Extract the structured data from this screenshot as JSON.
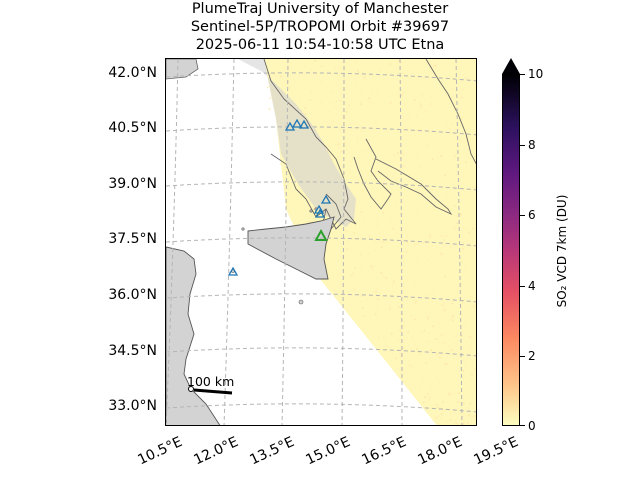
{
  "title": {
    "line1": "PlumeTraj    University of Manchester",
    "line2": "Sentinel-5P/TROPOMI Orbit #39697",
    "line3": "2025-06-11   10:54-10:58 UTC   Etna"
  },
  "axes": {
    "lat_ticks": [
      "42.0°N",
      "40.5°N",
      "39.0°N",
      "37.5°N",
      "36.0°N",
      "34.5°N",
      "33.0°N"
    ],
    "lon_ticks": [
      "10.5°E",
      "12.0°E",
      "13.5°E",
      "15.0°E",
      "16.5°E",
      "18.0°E",
      "19.5°E"
    ]
  },
  "colorbar": {
    "label": "SO₂ VCD 7km (DU)",
    "ticks": [
      "10",
      "8",
      "6",
      "4",
      "2",
      "0"
    ],
    "range": [
      0,
      10
    ],
    "colormap": "magma_r",
    "extend": "max"
  },
  "scale_bar": {
    "label": "100 km"
  },
  "map": {
    "region": "Central Mediterranean (Sicily, southern Italy)",
    "land_color": "#d3d3d3",
    "swath_color": "#fff5b8",
    "volcano_markers": [
      {
        "name": "Etna",
        "color": "#2ca02c",
        "primary": true
      }
    ],
    "other_volcano_marker_color": "#1f77b4"
  }
}
